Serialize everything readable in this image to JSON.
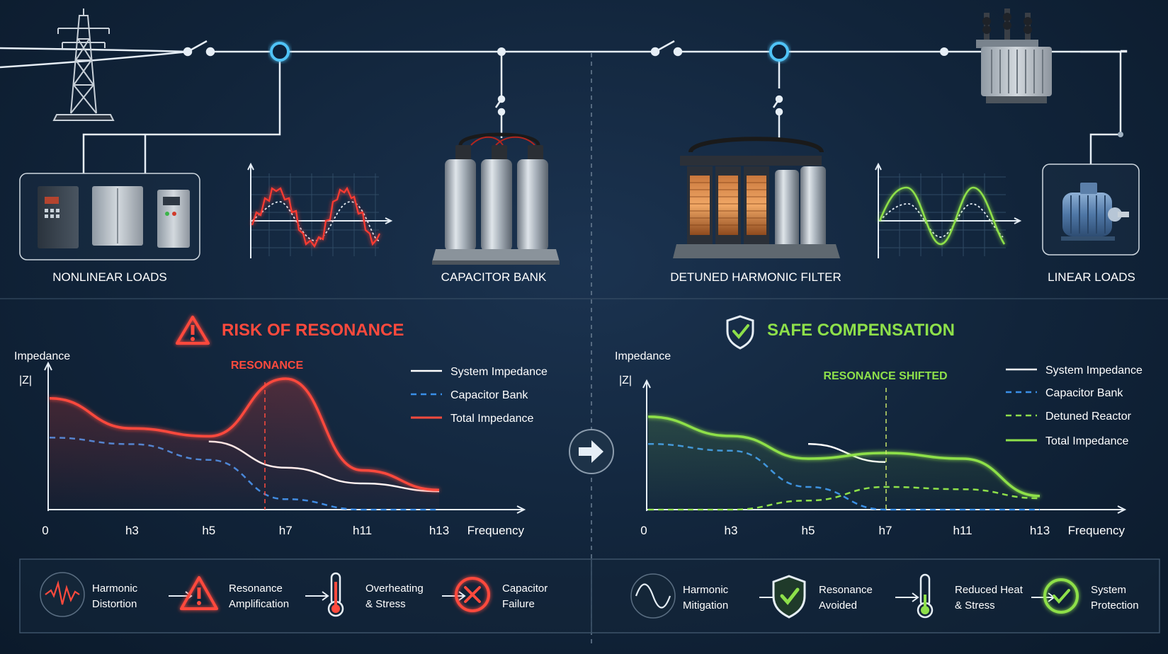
{
  "colors": {
    "background": "#11243a",
    "bus_line": "#e6eef6",
    "node_cyan": "#4fc3f7",
    "risk_red": "#ff4a3d",
    "safe_green": "#8ee04a",
    "capacitor_blue": "#3a8fe8",
    "divider": "#5f7388"
  },
  "top": {
    "labels": {
      "nonlinear": "NONLINEAR LOADS",
      "capacitor": "CAPACITOR BANK",
      "filter": "DETUNED HARMONIC FILTER",
      "linear": "LINEAR LOADS"
    },
    "icons": [
      "transmission-tower-icon",
      "vfd-drive-icon",
      "capacitor-bank-icon",
      "detuned-filter-icon",
      "transformer-icon",
      "motor-icon"
    ]
  },
  "left_panel": {
    "title": "RISK OF RESONANCE",
    "marker_label": "RESONANCE",
    "ylabel_1": "Impedance",
    "ylabel_2": "|Z|",
    "xlabel": "Frequency",
    "legend": {
      "system": "System Impedance",
      "capacitor": "Capacitor Bank",
      "total": "Total Impedance"
    }
  },
  "right_panel": {
    "title": "SAFE COMPENSATION",
    "marker_label": "RESONANCE SHIFTED",
    "ylabel_1": "Impedance",
    "ylabel_2": "|Z|",
    "xlabel": "Frequency",
    "legend": {
      "system": "System Impedance",
      "capacitor": "Capacitor Bank",
      "reactor": "Detuned Reactor",
      "total": "Total Impedance"
    }
  },
  "chart_data": [
    {
      "type": "line",
      "x": [
        "0",
        "h3",
        "h5",
        "h7",
        "h11",
        "h13"
      ],
      "xlabel": "Frequency",
      "ylabel": "Impedance |Z|",
      "title": "RISK OF RESONANCE",
      "annotations": [
        "RESONANCE at h7"
      ],
      "series": [
        {
          "name": "System Impedance",
          "values": [
            null,
            null,
            0.52,
            0.32,
            0.2,
            0.14
          ]
        },
        {
          "name": "Capacitor Bank",
          "values": [
            0.55,
            0.5,
            0.38,
            0.08,
            0,
            0
          ]
        },
        {
          "name": "Total Impedance",
          "values": [
            0.85,
            0.62,
            0.56,
            1.0,
            0.3,
            0.15
          ]
        }
      ]
    },
    {
      "type": "line",
      "x": [
        "0",
        "h3",
        "h5",
        "h7",
        "h11",
        "h13"
      ],
      "xlabel": "Frequency",
      "ylabel": "Impedance |Z|",
      "title": "SAFE COMPENSATION",
      "annotations": [
        "RESONANCE SHIFTED"
      ],
      "series": [
        {
          "name": "System Impedance",
          "values": [
            null,
            null,
            0.58,
            0.42,
            null,
            null
          ]
        },
        {
          "name": "Capacitor Bank",
          "values": [
            0.58,
            0.52,
            0.2,
            0,
            0,
            0
          ]
        },
        {
          "name": "Detuned Reactor",
          "values": [
            0,
            0,
            0.08,
            0.2,
            0.18,
            0.1
          ]
        },
        {
          "name": "Total Impedance",
          "values": [
            0.82,
            0.65,
            0.45,
            0.5,
            0.45,
            0.12
          ]
        }
      ]
    }
  ],
  "flow_left": {
    "steps": [
      {
        "line1": "Harmonic",
        "line2": "Distortion",
        "icon": "distortion-wave-icon"
      },
      {
        "line1": "Resonance",
        "line2": "Amplification",
        "icon": "warning-triangle-icon"
      },
      {
        "line1": "Overheating",
        "line2": "& Stress",
        "icon": "hot-thermometer-icon"
      },
      {
        "line1": "Capacitor",
        "line2": "Failure",
        "icon": "x-circle-icon"
      }
    ]
  },
  "flow_right": {
    "steps": [
      {
        "line1": "Harmonic",
        "line2": "Mitigation",
        "icon": "clean-wave-icon"
      },
      {
        "line1": "Resonance",
        "line2": "Avoided",
        "icon": "shield-check-icon"
      },
      {
        "line1": "Reduced Heat",
        "line2": "& Stress",
        "icon": "cool-thermometer-icon"
      },
      {
        "line1": "System",
        "line2": "Protection",
        "icon": "check-circle-icon"
      }
    ]
  }
}
